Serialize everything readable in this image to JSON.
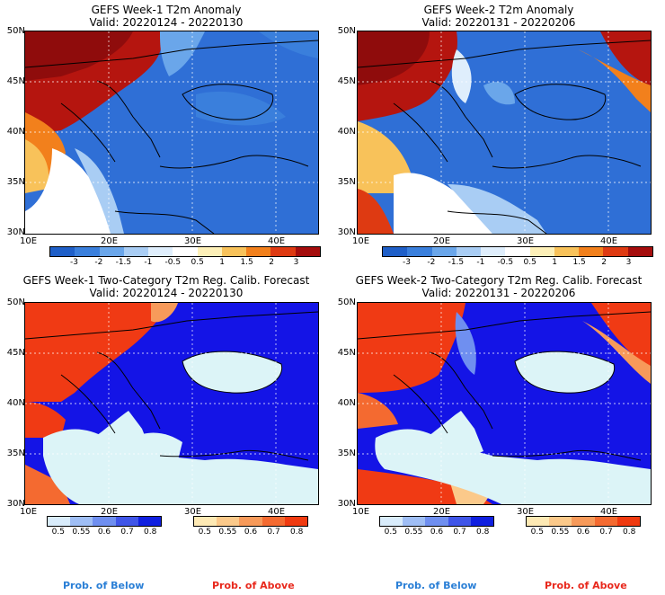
{
  "panels": [
    {
      "title": "GEFS Week-1 T2m Anomaly",
      "valid": "Valid: 20220124 - 20220130"
    },
    {
      "title": "GEFS Week-2 T2m Anomaly",
      "valid": "Valid: 20220131 - 20220206"
    },
    {
      "title": "GEFS Week-1 Two-Category T2m Reg. Calib. Forecast",
      "valid": "Valid: 20220124 - 20220130"
    },
    {
      "title": "GEFS Week-2 Two-Category T2m Reg. Calib. Forecast",
      "valid": "Valid: 20220131 - 20220206"
    }
  ],
  "lat_ticks": [
    "50N",
    "45N",
    "40N",
    "35N",
    "30N"
  ],
  "lon_ticks": [
    "10E",
    "20E",
    "30E",
    "40E"
  ],
  "anomaly_colorbar": {
    "labels": [
      "-3",
      "-2",
      "-1.5",
      "-1",
      "-0.5",
      "0.5",
      "1",
      "1.5",
      "2",
      "3"
    ],
    "colors": [
      "#1f5fc8",
      "#3a7fdc",
      "#6aa6ea",
      "#a9cdf4",
      "#dfeefc",
      "#ffffff",
      "#fdf0b8",
      "#f8c25a",
      "#f2801c",
      "#de3a12",
      "#a50d0d"
    ]
  },
  "below_colorbar": {
    "labels": [
      "0.5",
      "0.55",
      "0.6",
      "0.7",
      "0.8"
    ],
    "colors": [
      "#d9ecfb",
      "#9fbef5",
      "#6f8ff0",
      "#3f55e8",
      "#0f1fe0"
    ]
  },
  "above_colorbar": {
    "labels": [
      "0.5",
      "0.55",
      "0.6",
      "0.7",
      "0.8"
    ],
    "colors": [
      "#fde9b4",
      "#fbc98a",
      "#f79a5a",
      "#f46a30",
      "#f03a10"
    ]
  },
  "legend": {
    "below": "Prob. of Below",
    "above": "Prob. of Above"
  },
  "colors": {
    "water": "#dcf4f7",
    "blue_strong": "#1414e6",
    "red_strong": "#f03a14",
    "anom_cold": "#2f6fd6",
    "anom_warm": "#b5150f"
  }
}
